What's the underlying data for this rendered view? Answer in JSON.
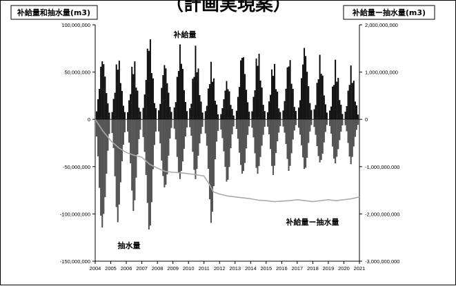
{
  "chart_data": {
    "type": "bar",
    "title": "（計画実現案）",
    "left_axis_label": "补給量和抽水量(m3)",
    "right_axis_label": "补給量ー抽水量(m3)",
    "left_axis": {
      "min": -150000000,
      "max": 100000000,
      "ticks": [
        "100,000,000",
        "50,000,000",
        "0",
        "-50,000,000",
        "-100,000,000",
        "-150,000,000"
      ],
      "tick_values": [
        100000000,
        50000000,
        0,
        -50000000,
        -100000000,
        -150000000
      ]
    },
    "right_axis": {
      "min": -3000000000,
      "max": 2000000000,
      "ticks": [
        "2,000,000,000",
        "1,000,000,000",
        "0",
        "-1,000,000,000",
        "-2,000,000,000",
        "-3,000,000,000"
      ],
      "tick_values": [
        2000000000,
        1000000000,
        0,
        -1000000000,
        -2000000000,
        -3000000000
      ]
    },
    "x_range": [
      2004,
      2021
    ],
    "x_ticks": [
      "2004",
      "2005",
      "2006",
      "2007",
      "2008",
      "2009",
      "2010",
      "2011",
      "2012",
      "2013",
      "2014",
      "2015",
      "2016",
      "2017",
      "2018",
      "2019",
      "2020",
      "2021"
    ],
    "annotations": {
      "recharge": "补給量",
      "pumping": "抽水量",
      "difference": "补給量ー抽水量"
    },
    "series": [
      {
        "name": "补給量",
        "axis": "left",
        "kind": "bar",
        "color": "#000000",
        "annual_peaks": [
          [
            2004,
            75000000
          ],
          [
            2005,
            72000000
          ],
          [
            2006,
            68000000
          ],
          [
            2007,
            97000000
          ],
          [
            2008,
            68000000
          ],
          [
            2009,
            84000000
          ],
          [
            2010,
            78000000
          ],
          [
            2011,
            62000000
          ],
          [
            2012,
            45000000
          ],
          [
            2013,
            82000000
          ],
          [
            2014,
            79000000
          ],
          [
            2015,
            65000000
          ],
          [
            2016,
            73000000
          ],
          [
            2017,
            87000000
          ],
          [
            2018,
            71000000
          ],
          [
            2019,
            63000000
          ],
          [
            2020,
            59000000
          ]
        ]
      },
      {
        "name": "抽水量",
        "axis": "left",
        "kind": "bar",
        "color": "#333333",
        "annual_troughs": [
          [
            2004,
            -132000000
          ],
          [
            2005,
            -113000000
          ],
          [
            2006,
            -97000000
          ],
          [
            2007,
            -126000000
          ],
          [
            2008,
            -85000000
          ],
          [
            2009,
            -72000000
          ],
          [
            2010,
            -65000000
          ],
          [
            2011,
            -110000000
          ],
          [
            2012,
            -72000000
          ],
          [
            2013,
            -68000000
          ],
          [
            2014,
            -65000000
          ],
          [
            2015,
            -60000000
          ],
          [
            2016,
            -55000000
          ],
          [
            2017,
            -58000000
          ],
          [
            2018,
            -54000000
          ],
          [
            2019,
            -52000000
          ],
          [
            2020,
            -48000000
          ]
        ]
      },
      {
        "name": "补給量ー抽水量",
        "axis": "right",
        "kind": "line",
        "color": "#aaaaaa",
        "points": [
          [
            2004.0,
            0
          ],
          [
            2004.5,
            -250000000
          ],
          [
            2005.0,
            -450000000
          ],
          [
            2005.5,
            -600000000
          ],
          [
            2006.0,
            -700000000
          ],
          [
            2006.5,
            -760000000
          ],
          [
            2007.0,
            -800000000
          ],
          [
            2007.5,
            -950000000
          ],
          [
            2008.0,
            -1030000000
          ],
          [
            2008.5,
            -1100000000
          ],
          [
            2009.0,
            -1120000000
          ],
          [
            2009.5,
            -1130000000
          ],
          [
            2010.0,
            -1150000000
          ],
          [
            2010.5,
            -1170000000
          ],
          [
            2011.0,
            -1200000000
          ],
          [
            2011.3,
            -1350000000
          ],
          [
            2011.6,
            -1530000000
          ],
          [
            2012.0,
            -1580000000
          ],
          [
            2012.5,
            -1620000000
          ],
          [
            2013.0,
            -1640000000
          ],
          [
            2013.5,
            -1660000000
          ],
          [
            2014.0,
            -1680000000
          ],
          [
            2014.5,
            -1710000000
          ],
          [
            2015.0,
            -1720000000
          ],
          [
            2015.5,
            -1740000000
          ],
          [
            2016.0,
            -1730000000
          ],
          [
            2016.5,
            -1720000000
          ],
          [
            2017.0,
            -1700000000
          ],
          [
            2017.5,
            -1720000000
          ],
          [
            2018.0,
            -1740000000
          ],
          [
            2018.5,
            -1720000000
          ],
          [
            2019.0,
            -1700000000
          ],
          [
            2019.5,
            -1720000000
          ],
          [
            2020.0,
            -1700000000
          ],
          [
            2020.5,
            -1680000000
          ],
          [
            2021.0,
            -1640000000
          ]
        ]
      }
    ],
    "grid": false,
    "legend": "none"
  }
}
